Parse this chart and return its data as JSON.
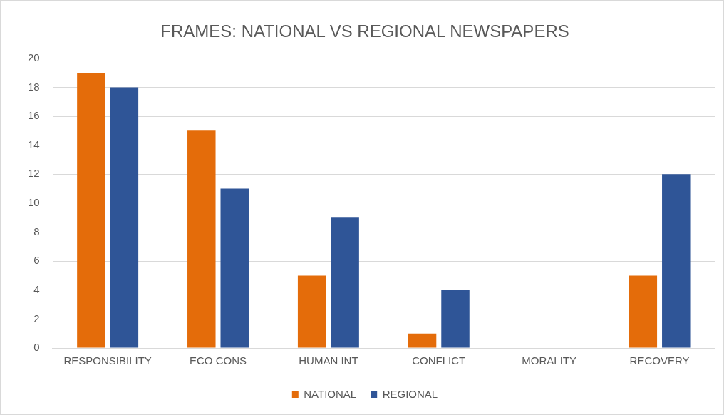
{
  "chart_data": {
    "type": "bar",
    "title": "FRAMES: NATIONAL VS REGIONAL NEWSPAPERS",
    "categories": [
      "RESPONSIBILITY",
      "ECO CONS",
      "HUMAN INT",
      "CONFLICT",
      "MORALITY",
      "RECOVERY"
    ],
    "series": [
      {
        "name": "NATIONAL",
        "color": "#e46c0a",
        "values": [
          19,
          15,
          5,
          1,
          0,
          5
        ]
      },
      {
        "name": "REGIONAL",
        "color": "#2f5597",
        "values": [
          18,
          11,
          9,
          4,
          0,
          12
        ]
      }
    ],
    "ylim": [
      0,
      20
    ],
    "yticks": [
      0,
      2,
      4,
      6,
      8,
      10,
      12,
      14,
      16,
      18,
      20
    ],
    "grid": "y",
    "legend": "bottom"
  }
}
